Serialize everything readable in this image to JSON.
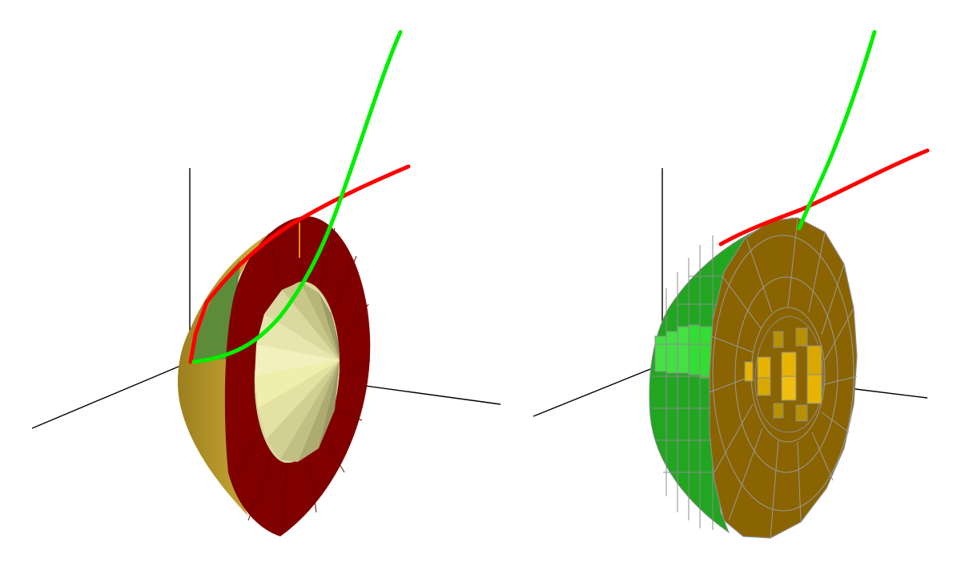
{
  "figure": {
    "panels": [
      {
        "name": "solid-of-revolution-surface",
        "style": "shaded-surface"
      },
      {
        "name": "solid-of-revolution-mesh",
        "style": "discretized-blocks"
      }
    ]
  },
  "colors": {
    "background": "#ffffff",
    "axis": "#000000",
    "curve_red": "#ff0000",
    "curve_green": "#00ee00",
    "outer_shell": "#b89a2a",
    "ring_face": "#800000",
    "inner_cavity_light": "#efeeaa",
    "inner_cavity_dark": "#8a8a58",
    "region_strip": "#5c8c3a",
    "mesh_face": "#8a6400",
    "mesh_green": "#22b022",
    "mesh_green_light": "#33dd33",
    "mesh_inner": "#e6b400",
    "mesh_edge": "#8c8c8c"
  }
}
